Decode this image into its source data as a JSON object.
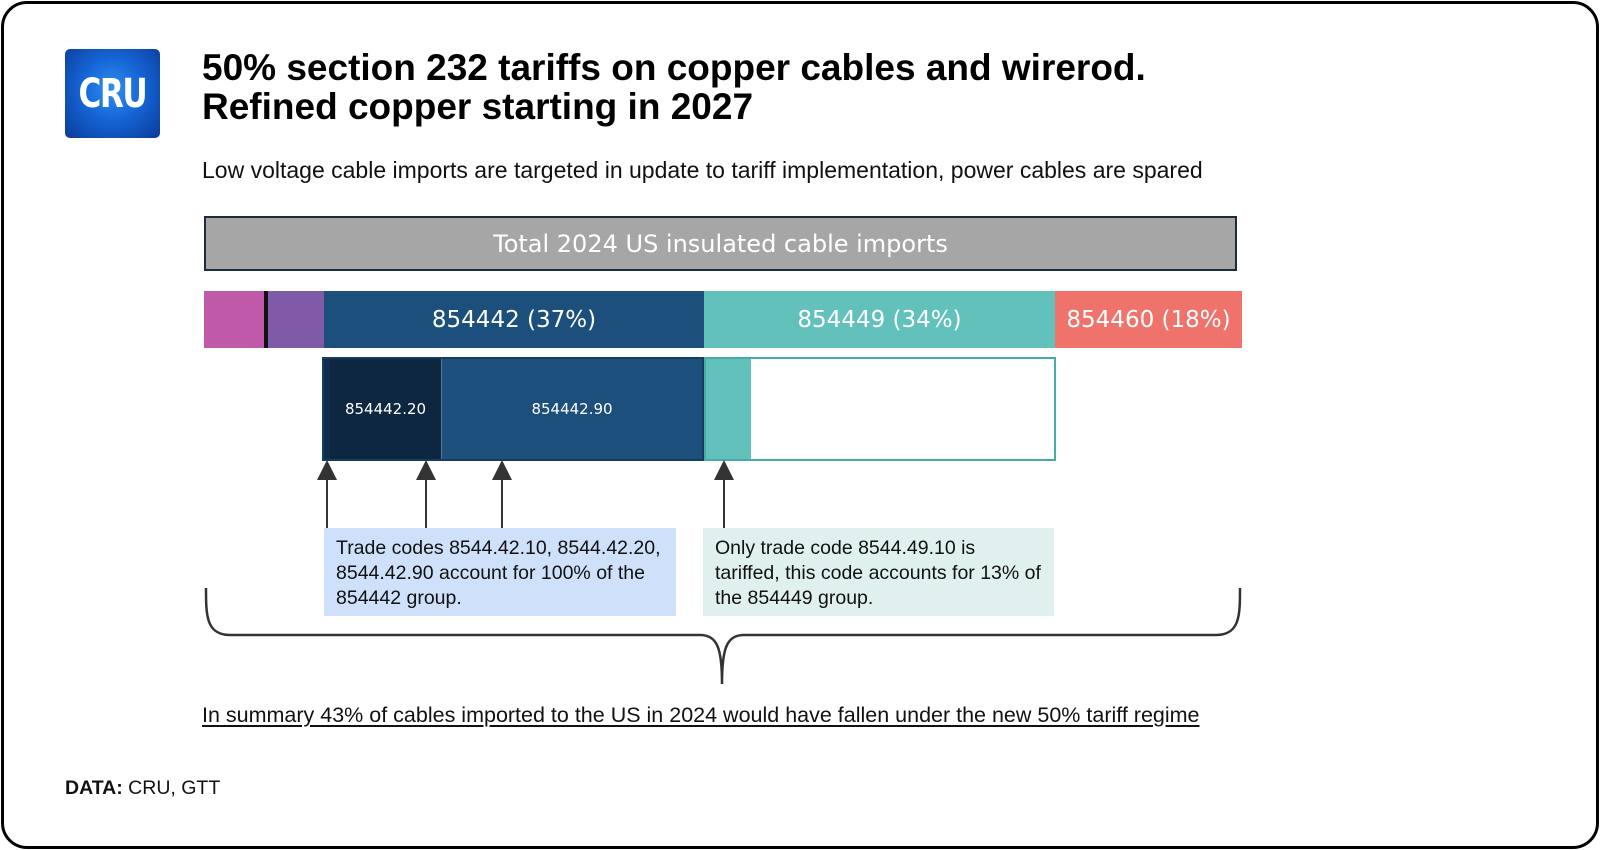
{
  "logo": {
    "text": "CRU",
    "colors": [
      "#2f8fef",
      "#0b3a98"
    ]
  },
  "title": {
    "line1": "50% section 232 tariffs on copper cables and wirerod.",
    "line2": "Refined copper starting in 2027"
  },
  "subtitle": "Low voltage cable imports are targeted in update to tariff implementation, power cables are spared",
  "total_bar_label": "Total 2024 US insulated cable imports",
  "chart_data": {
    "type": "stacked-bar",
    "title": "Total 2024 US insulated cable imports",
    "segments": [
      {
        "name": "",
        "color": "#c05aa8",
        "share": null
      },
      {
        "name": "",
        "color": "#7e5aa8",
        "share": null
      },
      {
        "name": "854442",
        "share": 37,
        "label": "854442 (37%)",
        "color": "#1c4f7c"
      },
      {
        "name": "854449",
        "share": 34,
        "label": "854449 (34%)",
        "color": "#63c1bc"
      },
      {
        "name": "854460",
        "share": 18,
        "label": "854460 (18%)",
        "color": "#ef736b"
      }
    ],
    "breakdown": [
      {
        "group": "854442",
        "parts": [
          {
            "code": "854442.10",
            "label": "",
            "color": "#0f2d4a"
          },
          {
            "code": "854442.20",
            "label": "854442.20",
            "color": "#0e2740"
          },
          {
            "code": "854442.90",
            "label": "854442.90",
            "color": "#1c4f7c"
          }
        ],
        "tariffed_share": 100
      },
      {
        "group": "854449",
        "parts": [
          {
            "code": "854449.10",
            "label": "",
            "color": "#63c1bc"
          }
        ],
        "tariffed_share": 13
      }
    ]
  },
  "notes": {
    "left": "Trade codes 8544.42.10, 8544.42.20, 8544.42.90 account for 100% of the 854442 group.",
    "right": "Only trade code 8544.49.10 is tariffed, this code accounts for 13% of the 854449 group."
  },
  "notes_colors": {
    "left": "#cfe0fb",
    "right": "#dff0ef"
  },
  "summary": "In summary 43% of cables imported to the US in 2024 would have fallen under the new 50% tariff regime",
  "source": {
    "label": "DATA:",
    "text": " CRU, GTT"
  }
}
